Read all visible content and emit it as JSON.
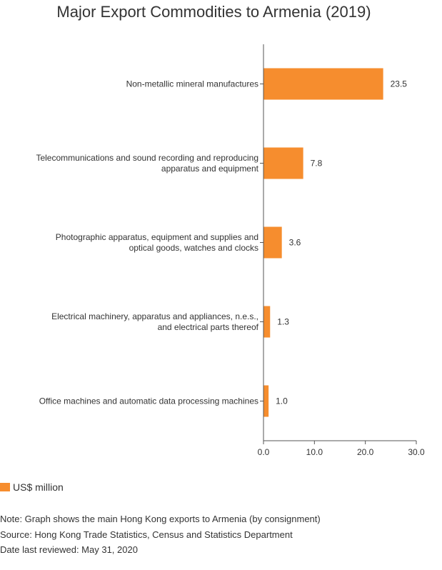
{
  "chart_data": {
    "type": "bar",
    "orientation": "horizontal",
    "title": "Major Export Commodities to Armenia (2019)",
    "categories": [
      [
        "Non-metallic mineral manufactures"
      ],
      [
        "Telecommunications and sound recording and reproducing",
        "apparatus and equipment"
      ],
      [
        "Photographic apparatus, equipment and supplies and",
        "optical goods, watches and clocks"
      ],
      [
        "Electrical machinery, apparatus and appliances, n.e.s.,",
        "and electrical parts thereof"
      ],
      [
        "Office machines and automatic data processing machines"
      ]
    ],
    "series": [
      {
        "name": "US$ million",
        "values": [
          23.5,
          7.8,
          3.6,
          1.3,
          1.0
        ],
        "color": "#f68d2e"
      }
    ],
    "value_labels": [
      "23.5",
      "7.8",
      "3.6",
      "1.3",
      "1.0"
    ],
    "xlim": [
      0,
      30
    ],
    "xticks": [
      0,
      10,
      20,
      30
    ],
    "xtick_labels": [
      "0.0",
      "10.0",
      "20.0",
      "30.0"
    ],
    "grid": false,
    "legend_position": "bottom-left"
  },
  "notes": [
    "Note: Graph shows the main Hong Kong exports to Armenia (by consignment)",
    "Source: Hong Kong Trade Statistics, Census and Statistics Department",
    "Date last reviewed: May 31, 2020"
  ]
}
